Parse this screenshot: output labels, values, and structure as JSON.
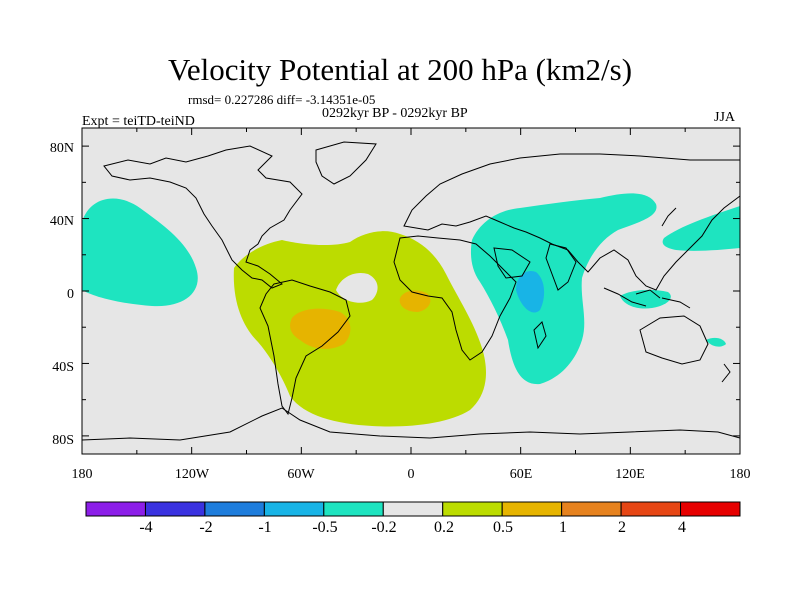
{
  "title": "Velocity Potential at 200 hPa (km2/s)",
  "stats": "rmsd= 0.227286 diff= -3.14351e-05",
  "period": "0292kyr BP - 0292kyr BP",
  "experiment": "Expt = teiTD-teiND",
  "season": "JJA",
  "lat_labels": [
    "80N",
    "40N",
    "0",
    "40S",
    "80S"
  ],
  "lon_labels": [
    "180",
    "120W",
    "60W",
    "0",
    "60E",
    "120E",
    "180"
  ],
  "colorbar": {
    "labels": [
      "-4",
      "-2",
      "-1",
      "-0.5",
      "-0.2",
      "0.2",
      "0.5",
      "1",
      "2",
      "4"
    ],
    "colors": [
      "#8c1ee8",
      "#3a32e0",
      "#1e7ddc",
      "#18b4e6",
      "#1ee4c0",
      "#e6e6e6",
      "#bcdc00",
      "#e6b400",
      "#e6821e",
      "#e64614",
      "#e60000"
    ]
  },
  "chart_data": {
    "type": "contour-map",
    "title": "Velocity Potential at 200 hPa (km2/s)",
    "variable": "velocity potential difference",
    "units": "km2/s",
    "xlim": [
      -180,
      180
    ],
    "ylim": [
      -90,
      90
    ],
    "levels": [
      -4,
      -2,
      -1,
      -0.5,
      -0.2,
      0.2,
      0.5,
      1,
      2,
      4
    ],
    "regions": [
      {
        "name": "central North Pacific",
        "range": "-0.5 to -0.2",
        "color": "#1ee4c0"
      },
      {
        "name": "Africa, Indian Ocean and Asia",
        "range": "-0.5 to -0.2",
        "color": "#1ee4c0"
      },
      {
        "name": "western Indian Ocean core",
        "range": "-1 to -0.5",
        "color": "#18b4e6"
      },
      {
        "name": "western Pacific near 30N",
        "range": "-0.5 to -0.2",
        "color": "#1ee4c0"
      },
      {
        "name": "Maritime Continent",
        "range": "-0.5 to -0.2",
        "color": "#1ee4c0"
      },
      {
        "name": "South America and South Atlantic",
        "range": "0.2 to 0.5",
        "color": "#bcdc00"
      },
      {
        "name": "central South America",
        "range": "0.5 to 1",
        "color": "#e6b400"
      },
      {
        "name": "equatorial Atlantic near West Africa",
        "range": "0.5 to 1",
        "color": "#e6b400"
      }
    ]
  }
}
